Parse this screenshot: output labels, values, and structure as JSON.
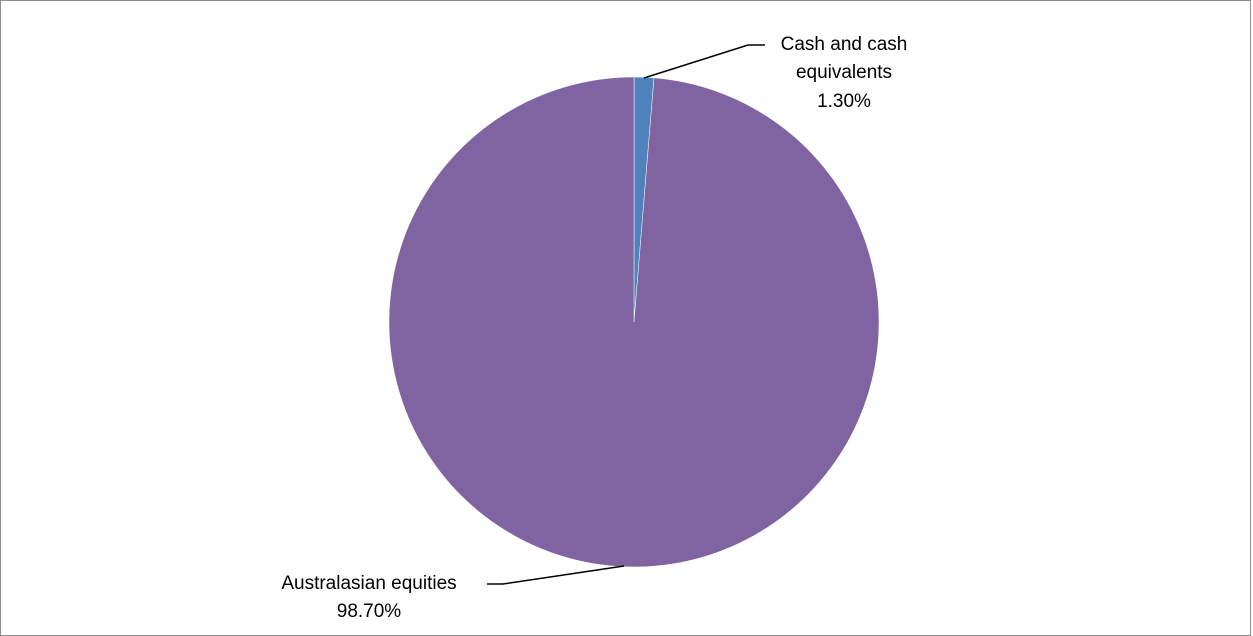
{
  "chart_data": {
    "type": "pie",
    "title": "",
    "slices": [
      {
        "label_lines": [
          "Cash and cash",
          "equivalents"
        ],
        "value": 1.3,
        "display": "1.30%",
        "color": "#4f81bd"
      },
      {
        "label_lines": [
          "Australasian equities"
        ],
        "value": 98.7,
        "display": "98.70%",
        "color": "#8064a2"
      }
    ],
    "legend": "none",
    "data_labels": "outside with leader lines"
  }
}
